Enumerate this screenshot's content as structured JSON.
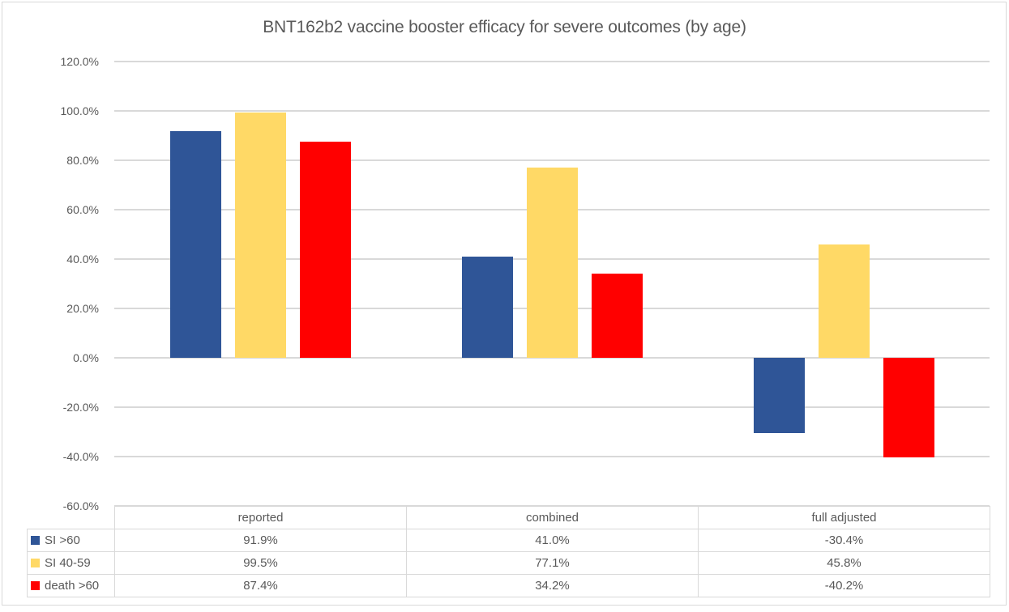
{
  "title": "BNT162b2 vaccine booster efficacy for severe outcomes (by age)",
  "chart_data": {
    "type": "bar",
    "title": "BNT162b2 vaccine booster efficacy for severe outcomes (by age)",
    "categories": [
      "reported",
      "combined",
      "full adjusted"
    ],
    "series": [
      {
        "name": "SI >60",
        "color": "#2F5597",
        "values": [
          91.9,
          41.0,
          -30.4
        ]
      },
      {
        "name": "SI 40-59",
        "color": "#FFD966",
        "values": [
          99.5,
          77.1,
          45.8
        ]
      },
      {
        "name": "death >60",
        "color": "#FF0000",
        "values": [
          87.4,
          34.2,
          -40.2
        ]
      }
    ],
    "value_unit": "percent",
    "ylim": [
      -60,
      120
    ],
    "ytick_step": 20,
    "ytick_labels": [
      "120.0%",
      "100.0%",
      "80.0%",
      "60.0%",
      "40.0%",
      "20.0%",
      "0.0%",
      "-20.0%",
      "-40.0%",
      "-60.0%"
    ],
    "grid": true,
    "legend_position": "data-table-left",
    "data_table": {
      "column_headers": [
        "reported",
        "combined",
        "full adjusted"
      ],
      "rows": [
        {
          "label": "SI >60",
          "swatch_color": "#2F5597",
          "values": [
            "91.9%",
            "41.0%",
            "-30.4%"
          ]
        },
        {
          "label": "SI 40-59",
          "swatch_color": "#FFD966",
          "values": [
            "99.5%",
            "77.1%",
            "45.8%"
          ]
        },
        {
          "label": "death >60",
          "swatch_color": "#FF0000",
          "values": [
            "87.4%",
            "34.2%",
            "-40.2%"
          ]
        }
      ]
    }
  },
  "colors": {
    "series_blue": "#2F5597",
    "series_yellow": "#FFD966",
    "series_red": "#FF0000",
    "gridline": "#D9D9D9",
    "table_border": "#D9D9D9",
    "text": "#595959",
    "background": "#FFFFFF"
  }
}
